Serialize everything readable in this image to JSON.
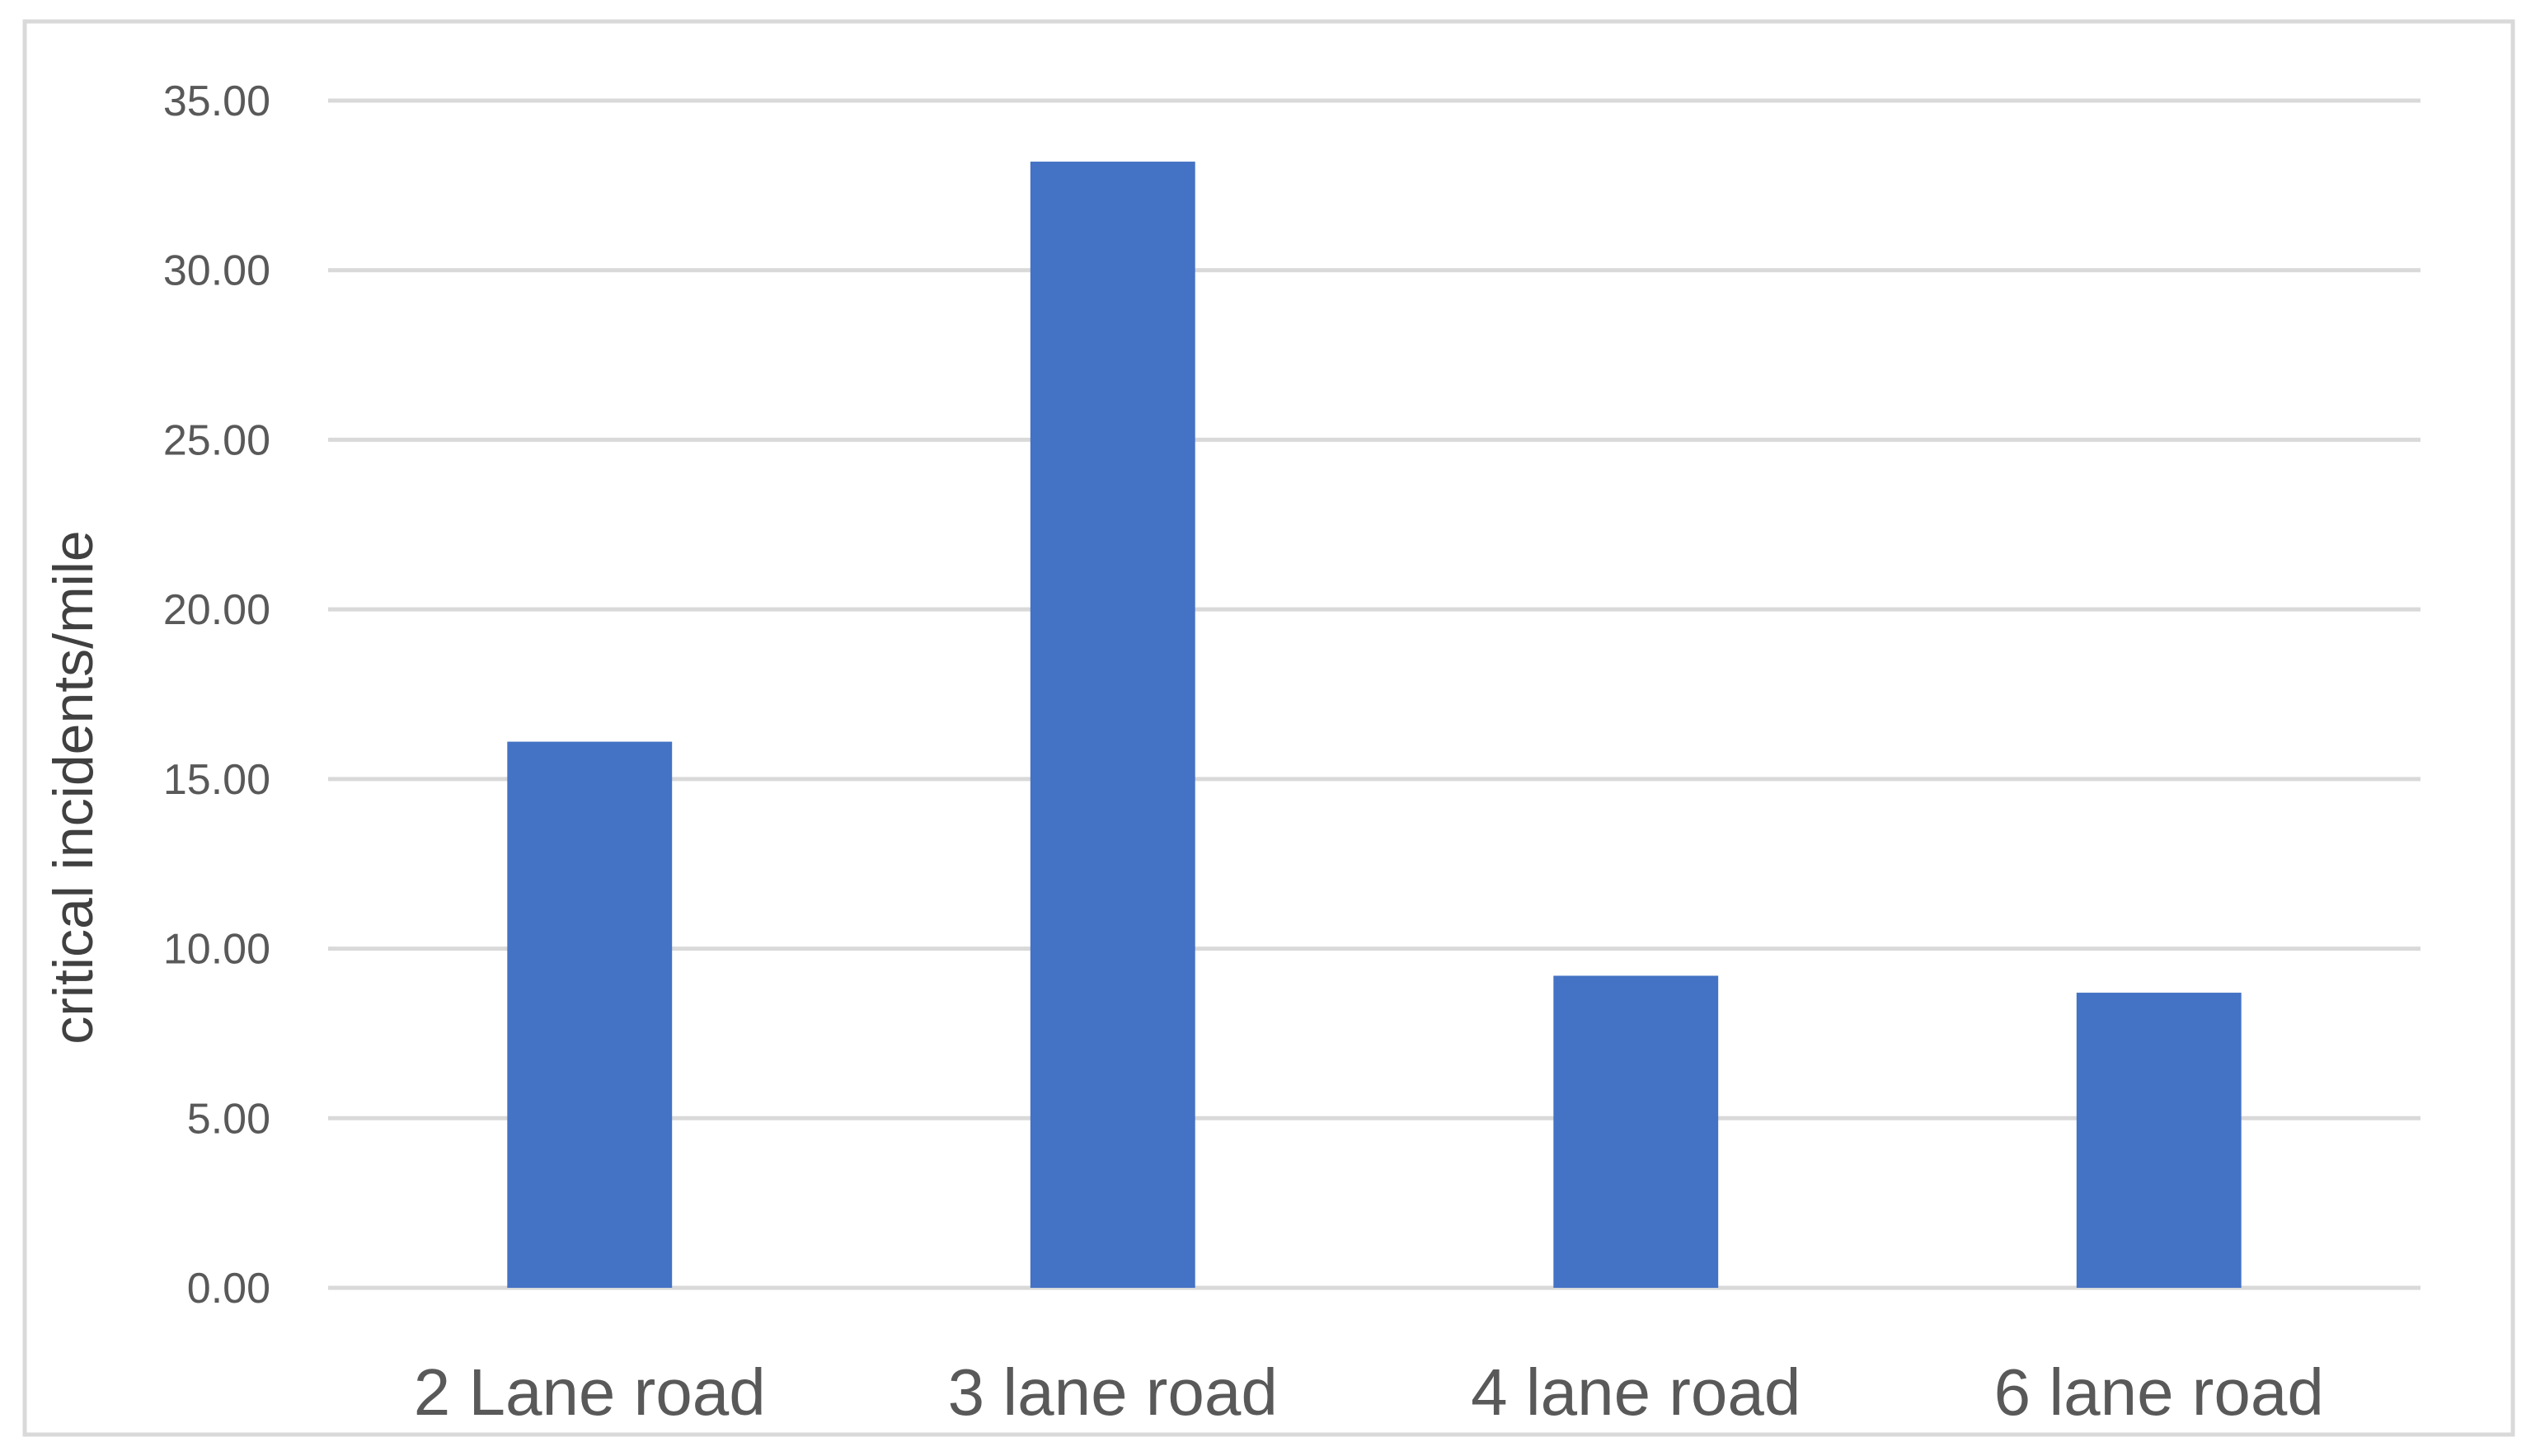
{
  "chart_data": {
    "type": "bar",
    "title": "",
    "xlabel": "",
    "ylabel": "critical incidents/mile",
    "categories": [
      "2 Lane road",
      "3 lane road",
      "4 lane road",
      "6 lane road"
    ],
    "values": [
      16.1,
      33.2,
      9.2,
      8.7
    ],
    "ylim": [
      0,
      35
    ],
    "yticks": [
      0,
      5,
      10,
      15,
      20,
      25,
      30,
      35
    ],
    "ytick_labels": [
      "0.00",
      "5.00",
      "10.00",
      "15.00",
      "20.00",
      "25.00",
      "30.00",
      "35.00"
    ],
    "grid": true,
    "legend": "none",
    "colors": {
      "bar": "#4472C4",
      "grid": "#D9D9D9",
      "border": "#D9D9D9",
      "text": "#595959"
    }
  }
}
